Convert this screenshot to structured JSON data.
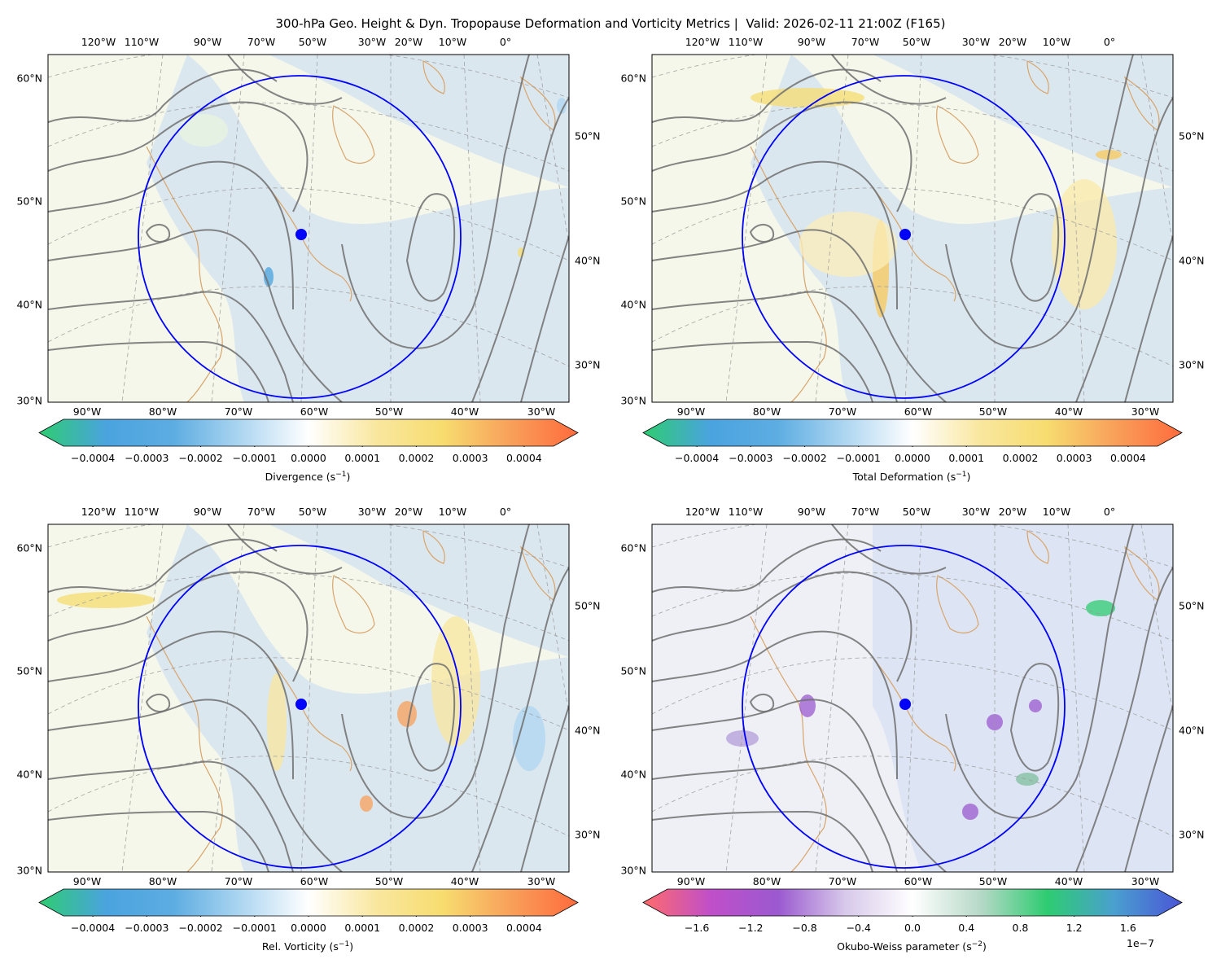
{
  "title": "300-hPa Geo. Height & Dyn. Tropopause Deformation and Vorticity Metrics |  Valid: 2026-02-11 21:00Z (F165)",
  "axes": {
    "top_ticks": [
      "120°W",
      "110°W",
      "90°W",
      "70°W",
      "50°W",
      "30°W",
      "20°W",
      "10°W",
      "0°"
    ],
    "bottom_ticks": [
      "90°W",
      "80°W",
      "70°W",
      "60°W",
      "50°W",
      "40°W",
      "30°W"
    ],
    "left_ticks": [
      "60°N",
      "50°N",
      "40°N",
      "30°N"
    ],
    "right_ticks": [
      "50°N",
      "40°N",
      "30°N"
    ]
  },
  "colors": {
    "circle": "#0000ff",
    "contour": "#6e6e6e",
    "coast": "#d9a46a",
    "ocean": "#dbe7ef",
    "land": "#f4f7ea"
  },
  "panels": [
    {
      "id": "divergence",
      "colorbar": {
        "label": "Divergence (s",
        "label_exp": "−1",
        "ticks": [
          "−0.0004",
          "−0.0003",
          "−0.0002",
          "−0.0001",
          "0.0000",
          "0.0001",
          "0.0002",
          "0.0003",
          "0.0004"
        ],
        "colormap": [
          "#2ecc71",
          "#4aa3df",
          "#5dade2",
          "#aed6f1",
          "#ffffff",
          "#f9e79f",
          "#f7dc6f",
          "#f8a05a",
          "#ff6b3d"
        ]
      }
    },
    {
      "id": "total-deformation",
      "colorbar": {
        "label": "Total Deformation (s",
        "label_exp": "−1",
        "ticks": [
          "−0.0004",
          "−0.0003",
          "−0.0002",
          "−0.0001",
          "0.0000",
          "0.0001",
          "0.0002",
          "0.0003",
          "0.0004"
        ],
        "colormap": [
          "#2ecc71",
          "#4aa3df",
          "#5dade2",
          "#aed6f1",
          "#ffffff",
          "#f9e79f",
          "#f7dc6f",
          "#f8a05a",
          "#ff6b3d"
        ]
      }
    },
    {
      "id": "relative-vorticity",
      "colorbar": {
        "label": "Rel. Vorticity (s",
        "label_exp": "−1",
        "ticks": [
          "−0.0004",
          "−0.0003",
          "−0.0002",
          "−0.0001",
          "0.0000",
          "0.0001",
          "0.0002",
          "0.0003",
          "0.0004"
        ],
        "colormap": [
          "#2ecc71",
          "#4aa3df",
          "#5dade2",
          "#aed6f1",
          "#ffffff",
          "#f9e79f",
          "#f7dc6f",
          "#f8a05a",
          "#ff6b3d"
        ]
      }
    },
    {
      "id": "okubo-weiss",
      "colorbar": {
        "label": "Okubo-Weiss parameter (s",
        "label_exp": "−2",
        "ticks": [
          "−1.6",
          "−1.2",
          "−0.8",
          "−0.4",
          "0.0",
          "0.4",
          "0.8",
          "1.2",
          "1.6"
        ],
        "offset": "1e−7",
        "colormap": [
          "#ff6b6b",
          "#c04fc9",
          "#9b59d0",
          "#d7c9ea",
          "#ffffff",
          "#b7d9c8",
          "#2ecc71",
          "#4a9fd0",
          "#4a55d6"
        ]
      }
    }
  ]
}
